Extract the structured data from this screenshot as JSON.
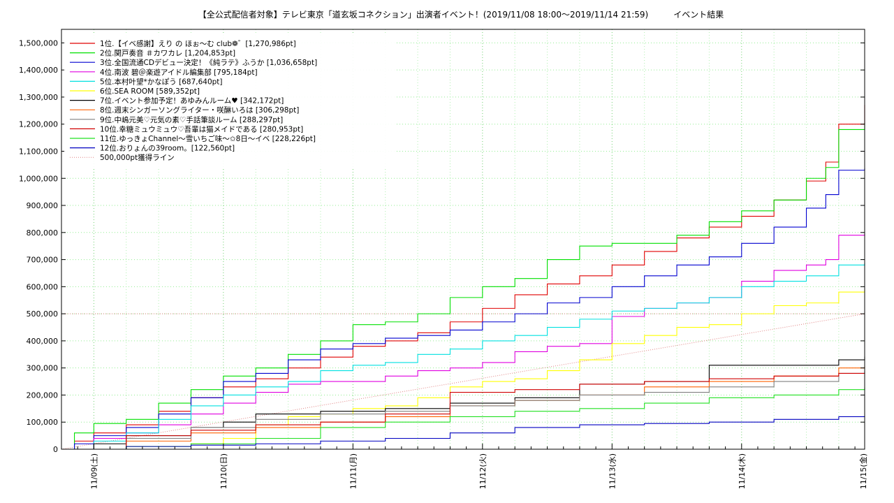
{
  "chart_data": {
    "type": "line",
    "title": "【全公式配信者対象】テレビ東京「道玄坂コネクション」出演者イベント！(2019/11/08 18:00～2019/11/14 21:59)　　　イベント結果",
    "xlabel": "",
    "ylabel": "",
    "x_unit": "days since 2019/11/08 18:00",
    "xlim": [
      0,
      6.2
    ],
    "ylim": [
      0,
      1550000
    ],
    "y_ticks": [
      0,
      100000,
      200000,
      300000,
      400000,
      500000,
      600000,
      700000,
      800000,
      900000,
      1000000,
      1100000,
      1200000,
      1300000,
      1400000,
      1500000
    ],
    "y_tick_labels": [
      "0",
      "100,000",
      "200,000",
      "300,000",
      "400,000",
      "500,000",
      "600,000",
      "700,000",
      "800,000",
      "900,000",
      "1,000,000",
      "1,100,000",
      "1,200,000",
      "1,300,000",
      "1,400,000",
      "1,500,000"
    ],
    "x_ticks": [
      0.25,
      1.25,
      2.25,
      3.25,
      4.25,
      5.25,
      6.25
    ],
    "x_tick_labels": [
      "11/09(土)",
      "11/10(日)",
      "11/11(月)",
      "11/12(火)",
      "11/13(水)",
      "11/14(木)",
      "11/15(金)"
    ],
    "grid": true,
    "legend_position": "top-left",
    "series": [
      {
        "name": "1位.【イベ感謝】えり の ほぉ～む club❁゛[1,270,986pt]",
        "color": "#e00000",
        "x": [
          0,
          0.1,
          0.25,
          0.5,
          0.75,
          1.0,
          1.25,
          1.5,
          1.75,
          2.0,
          2.25,
          2.5,
          2.75,
          3.0,
          3.25,
          3.5,
          3.75,
          4.0,
          4.25,
          4.5,
          4.75,
          5.0,
          5.25,
          5.5,
          5.75,
          5.9,
          6.0,
          6.2
        ],
        "y": [
          0,
          30000,
          60000,
          90000,
          140000,
          190000,
          230000,
          260000,
          300000,
          340000,
          380000,
          400000,
          430000,
          470000,
          520000,
          570000,
          610000,
          640000,
          680000,
          730000,
          780000,
          820000,
          860000,
          920000,
          990000,
          1060000,
          1200000,
          1270986
        ]
      },
      {
        "name": "2位.関戸奏音 ＃カワカレ [1,204,853pt]",
        "color": "#00e000",
        "x": [
          0,
          0.1,
          0.25,
          0.5,
          0.75,
          1.0,
          1.25,
          1.5,
          1.75,
          2.0,
          2.25,
          2.5,
          2.75,
          3.0,
          3.25,
          3.5,
          3.75,
          4.0,
          4.25,
          4.5,
          4.75,
          5.0,
          5.25,
          5.5,
          5.75,
          5.9,
          6.0,
          6.2
        ],
        "y": [
          0,
          60000,
          95000,
          110000,
          170000,
          220000,
          270000,
          300000,
          350000,
          400000,
          460000,
          470000,
          500000,
          560000,
          600000,
          630000,
          700000,
          750000,
          760000,
          760000,
          790000,
          840000,
          880000,
          920000,
          1000000,
          1040000,
          1180000,
          1204853
        ]
      },
      {
        "name": "3位.全国流通CDデビュー決定！《純ラテ》ふうか [1,036,658pt]",
        "color": "#0000d0",
        "x": [
          0,
          0.1,
          0.25,
          0.5,
          0.75,
          1.0,
          1.25,
          1.5,
          1.75,
          2.0,
          2.25,
          2.5,
          2.75,
          3.0,
          3.25,
          3.5,
          3.75,
          4.0,
          4.25,
          4.5,
          4.75,
          5.0,
          5.25,
          5.5,
          5.75,
          5.9,
          6.0,
          6.2
        ],
        "y": [
          0,
          20000,
          50000,
          80000,
          130000,
          190000,
          250000,
          280000,
          330000,
          370000,
          390000,
          410000,
          420000,
          440000,
          470000,
          500000,
          540000,
          560000,
          600000,
          640000,
          680000,
          710000,
          760000,
          820000,
          890000,
          940000,
          1030000,
          1036658
        ]
      },
      {
        "name": "4位.南波 碧＠楽遊アイドル編集部 [795,184pt]",
        "color": "#e000e0",
        "x": [
          0,
          0.25,
          0.5,
          0.75,
          1.0,
          1.25,
          1.5,
          1.75,
          2.0,
          2.25,
          2.5,
          2.75,
          3.0,
          3.25,
          3.5,
          3.75,
          4.0,
          4.25,
          4.5,
          4.75,
          5.0,
          5.25,
          5.5,
          5.75,
          5.9,
          6.0,
          6.2
        ],
        "y": [
          0,
          40000,
          60000,
          90000,
          130000,
          170000,
          210000,
          240000,
          250000,
          250000,
          270000,
          290000,
          300000,
          320000,
          360000,
          380000,
          390000,
          490000,
          520000,
          540000,
          560000,
          620000,
          660000,
          680000,
          700000,
          790000,
          795184
        ]
      },
      {
        "name": "5位.本村叶望*かなぽう [687,640pt]",
        "color": "#00e0e0",
        "x": [
          0,
          0.25,
          0.5,
          0.75,
          1.0,
          1.25,
          1.5,
          1.75,
          2.0,
          2.25,
          2.5,
          2.75,
          3.0,
          3.25,
          3.5,
          3.75,
          4.0,
          4.25,
          4.5,
          4.75,
          5.0,
          5.25,
          5.5,
          5.75,
          6.0,
          6.2
        ],
        "y": [
          0,
          30000,
          60000,
          110000,
          160000,
          200000,
          230000,
          250000,
          290000,
          310000,
          320000,
          350000,
          370000,
          400000,
          420000,
          450000,
          480000,
          510000,
          520000,
          540000,
          560000,
          600000,
          620000,
          640000,
          680000,
          687640
        ]
      },
      {
        "name": "6位.SEA ROOM [589,352pt]",
        "color": "#ffff00",
        "x": [
          0,
          0.5,
          1.0,
          1.25,
          1.5,
          1.75,
          2.0,
          2.25,
          2.5,
          2.75,
          3.0,
          3.25,
          3.5,
          3.75,
          4.0,
          4.25,
          4.5,
          4.75,
          5.0,
          5.25,
          5.5,
          5.75,
          6.0,
          6.2
        ],
        "y": [
          0,
          10000,
          20000,
          40000,
          90000,
          120000,
          130000,
          150000,
          160000,
          190000,
          230000,
          250000,
          260000,
          290000,
          330000,
          390000,
          420000,
          450000,
          460000,
          500000,
          530000,
          540000,
          580000,
          589352
        ]
      },
      {
        "name": "7位.イベント参加予定！あゆみんルーム♥ [342,172pt]",
        "color": "#000000",
        "x": [
          0,
          0.25,
          0.5,
          1.0,
          1.25,
          1.5,
          2.0,
          2.5,
          3.0,
          3.5,
          4.0,
          4.5,
          4.9,
          5.0,
          5.5,
          6.0,
          6.2
        ],
        "y": [
          0,
          20000,
          50000,
          80000,
          100000,
          130000,
          140000,
          150000,
          170000,
          190000,
          240000,
          250000,
          250000,
          310000,
          310000,
          330000,
          342172
        ]
      },
      {
        "name": "8位.週末シンガーソングライター・咲醂いろは [306,298pt]",
        "color": "#ff6000",
        "x": [
          0,
          0.5,
          1.0,
          1.5,
          2.0,
          2.5,
          3.0,
          3.5,
          4.0,
          4.5,
          5.0,
          5.5,
          6.0,
          6.2
        ],
        "y": [
          0,
          30000,
          60000,
          80000,
          100000,
          120000,
          160000,
          180000,
          200000,
          230000,
          250000,
          270000,
          300000,
          306298
        ]
      },
      {
        "name": "9位.中嶋元美♡元気の素♡手話筆談ルーム [288,297pt]",
        "color": "#808080",
        "x": [
          0,
          0.5,
          1.0,
          1.5,
          2.0,
          2.5,
          3.0,
          3.5,
          4.0,
          4.5,
          5.0,
          5.5,
          6.0,
          6.2
        ],
        "y": [
          0,
          40000,
          80000,
          110000,
          130000,
          140000,
          160000,
          180000,
          200000,
          210000,
          230000,
          250000,
          280000,
          288297
        ]
      },
      {
        "name": "10位.幸糖ミュウミュウ♡吾輩は猫メイドである [280,953pt]",
        "color": "#d00000",
        "x": [
          0,
          0.5,
          1.0,
          1.5,
          2.0,
          2.5,
          3.0,
          3.5,
          4.0,
          4.5,
          5.0,
          5.5,
          6.0,
          6.2
        ],
        "y": [
          0,
          50000,
          70000,
          90000,
          100000,
          130000,
          210000,
          220000,
          240000,
          250000,
          260000,
          270000,
          280000,
          280953
        ]
      },
      {
        "name": "11位.ゆっきょChannel～雪いちご味～✩8日～イベ [228,226pt]",
        "color": "#20e020",
        "x": [
          0,
          0.5,
          1.0,
          1.5,
          2.0,
          2.5,
          3.0,
          3.5,
          4.0,
          4.5,
          5.0,
          5.5,
          6.0,
          6.2
        ],
        "y": [
          0,
          10000,
          20000,
          40000,
          80000,
          100000,
          120000,
          140000,
          150000,
          170000,
          190000,
          200000,
          220000,
          228226
        ]
      },
      {
        "name": "12位.おりょんの39room。[122,560pt]",
        "color": "#0000c0",
        "x": [
          0,
          0.5,
          1.0,
          1.5,
          2.0,
          2.5,
          3.0,
          3.5,
          4.0,
          4.5,
          5.0,
          5.5,
          6.0,
          6.2
        ],
        "y": [
          0,
          10000,
          15000,
          20000,
          30000,
          40000,
          60000,
          80000,
          90000,
          95000,
          100000,
          110000,
          120000,
          122560
        ]
      },
      {
        "name": "500,000pt獲得ライン",
        "color": "#e08080",
        "dashed": true,
        "x": [
          0,
          6.2
        ],
        "y": [
          0,
          500000
        ]
      }
    ]
  }
}
